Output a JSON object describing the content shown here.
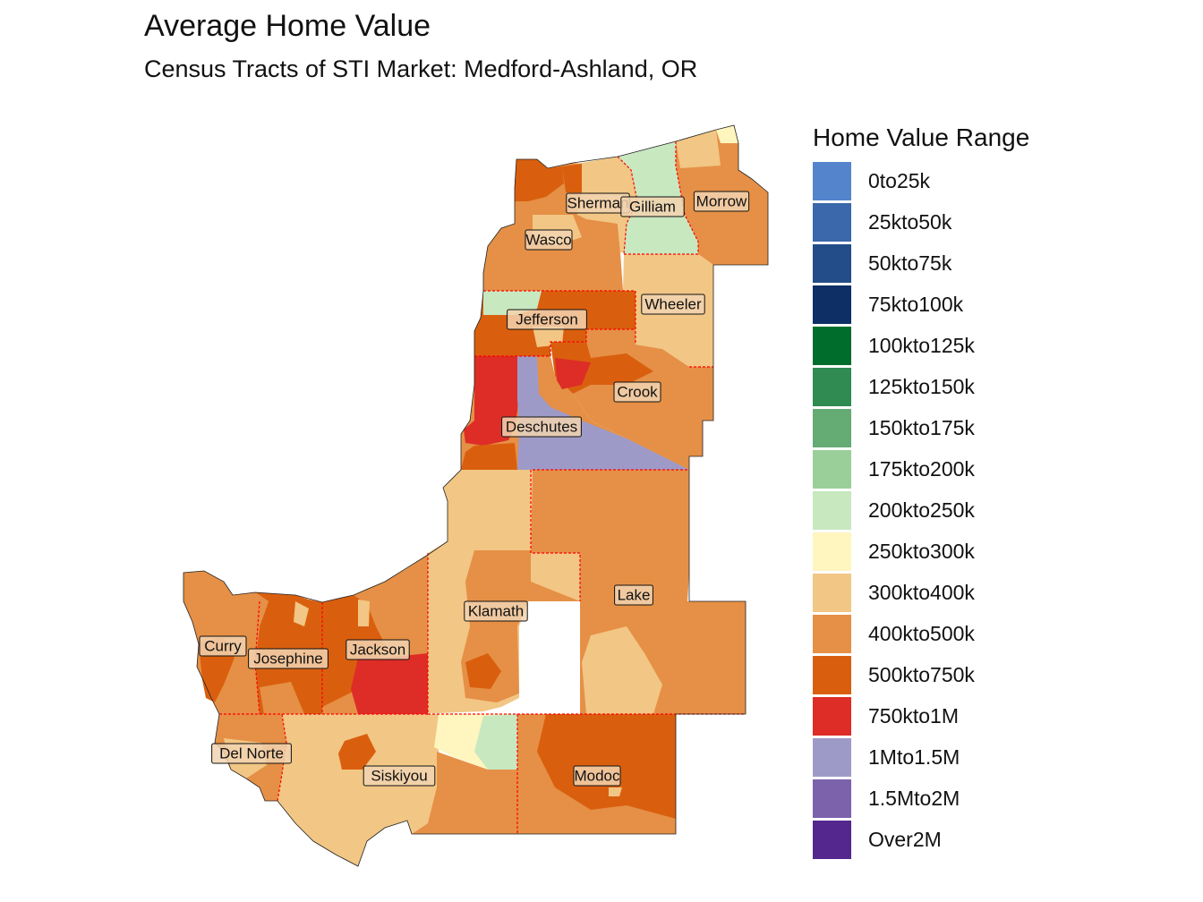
{
  "title": "Average Home Value",
  "subtitle": "Census Tracts of STI Market: Medford-Ashland, OR",
  "legend": {
    "title": "Home Value Range",
    "items": [
      {
        "label": "0to25k",
        "color": "#5384cc"
      },
      {
        "label": "25kto50k",
        "color": "#3a68ab"
      },
      {
        "label": "50kto75k",
        "color": "#234d88"
      },
      {
        "label": "75kto100k",
        "color": "#0d2f66"
      },
      {
        "label": "100kto125k",
        "color": "#006d2c"
      },
      {
        "label": "125kto150k",
        "color": "#2f8b52"
      },
      {
        "label": "150kto175k",
        "color": "#64ab74"
      },
      {
        "label": "175kto200k",
        "color": "#9bcf99"
      },
      {
        "label": "200kto250k",
        "color": "#c8e8c0"
      },
      {
        "label": "250kto300k",
        "color": "#fff5be"
      },
      {
        "label": "300kto400k",
        "color": "#f2c684"
      },
      {
        "label": "400kto500k",
        "color": "#e59046"
      },
      {
        "label": "500kto750k",
        "color": "#d95f0e"
      },
      {
        "label": "750kto1M",
        "color": "#de2d26"
      },
      {
        "label": "1Mto1.5M",
        "color": "#9e9ac8"
      },
      {
        "label": "1.5Mto2M",
        "color": "#7b62ab"
      },
      {
        "label": "Over2M",
        "color": "#54278f"
      }
    ]
  },
  "counties": [
    {
      "name": "Sherman",
      "value_range": "300kto400k"
    },
    {
      "name": "Gilliam",
      "value_range": "200kto250k"
    },
    {
      "name": "Morrow",
      "value_range": "400kto500k"
    },
    {
      "name": "Wasco",
      "value_range": "400kto500k"
    },
    {
      "name": "Wheeler",
      "value_range": "300kto400k"
    },
    {
      "name": "Jefferson",
      "value_range": "500kto750k"
    },
    {
      "name": "Crook",
      "value_range": "400kto500k"
    },
    {
      "name": "Deschutes",
      "value_range": "750kto1M"
    },
    {
      "name": "Lake",
      "value_range": "400kto500k"
    },
    {
      "name": "Klamath",
      "value_range": "300kto400k"
    },
    {
      "name": "Curry",
      "value_range": "400kto500k"
    },
    {
      "name": "Josephine",
      "value_range": "500kto750k"
    },
    {
      "name": "Jackson",
      "value_range": "500kto750k"
    },
    {
      "name": "Del Norte",
      "value_range": "400kto500k"
    },
    {
      "name": "Siskiyou",
      "value_range": "300kto400k"
    },
    {
      "name": "Modoc",
      "value_range": "500kto750k"
    }
  ],
  "market_boundary_color": "#ff0000"
}
